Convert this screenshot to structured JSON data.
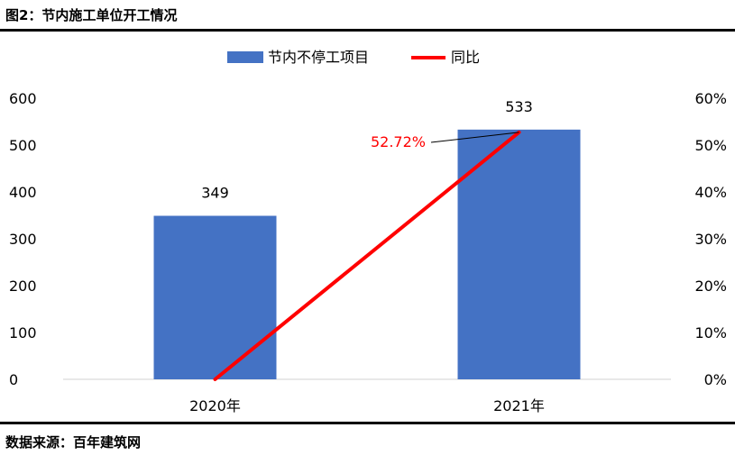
{
  "header": {
    "title": "图2：节内施工单位开工情况"
  },
  "footer": {
    "source": "数据来源：百年建筑网"
  },
  "chart_data": {
    "type": "bar",
    "categories": [
      "2020年",
      "2021年"
    ],
    "series": [
      {
        "name": "节内不停工项目",
        "type": "bar",
        "axis": "left",
        "color": "#4472C4",
        "values": [
          349,
          533
        ]
      },
      {
        "name": "同比",
        "type": "line",
        "axis": "right",
        "color": "#FF0000",
        "values": [
          0,
          52.72
        ]
      }
    ],
    "data_labels": [
      "349",
      "533"
    ],
    "line_annotation": "52.72%",
    "y_left": {
      "min": 0,
      "max": 600,
      "ticks": [
        "0",
        "100",
        "200",
        "300",
        "400",
        "500",
        "600"
      ]
    },
    "y_right": {
      "min": 0,
      "max": 60,
      "ticks": [
        "0%",
        "10%",
        "20%",
        "30%",
        "40%",
        "50%",
        "60%"
      ]
    },
    "legend_position": "top-center",
    "grid": false
  }
}
